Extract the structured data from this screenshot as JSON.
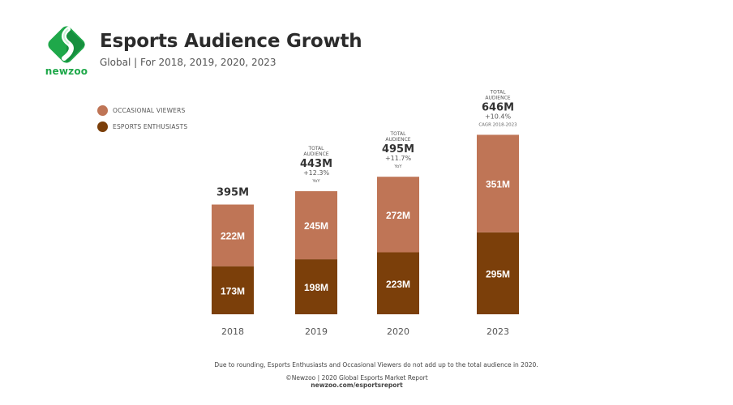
{
  "brand": {
    "logo_text": "newzoo",
    "logo_color": "#1fa84a",
    "logo_dark": "#0e7a35"
  },
  "header": {
    "title": "Esports Audience Growth",
    "subtitle": "Global | For 2018, 2019, 2020, 2023"
  },
  "chart_data": {
    "type": "bar",
    "stacked": true,
    "title": "Esports Audience Growth",
    "subtitle": "Global | For 2018, 2019, 2020, 2023",
    "categories": [
      "2018",
      "2019",
      "2020",
      "2023"
    ],
    "series": [
      {
        "name": "ESPORTS ENTHUSIASTS",
        "color": "#7b3f0a",
        "values": [
          173,
          198,
          223,
          295
        ],
        "labels": [
          "173M",
          "198M",
          "223M",
          "295M"
        ]
      },
      {
        "name": "OCCASIONAL VIEWERS",
        "color": "#bf7556",
        "values": [
          222,
          245,
          272,
          351
        ],
        "labels": [
          "222M",
          "245M",
          "272M",
          "351M"
        ]
      }
    ],
    "totals": [
      {
        "category": "2018",
        "header": "",
        "value": "395M",
        "change": "",
        "change_note": ""
      },
      {
        "category": "2019",
        "header": "TOTAL AUDIENCE",
        "value": "443M",
        "change": "+12.3%",
        "change_note": "YoY"
      },
      {
        "category": "2020",
        "header": "TOTAL AUDIENCE",
        "value": "495M",
        "change": "+11.7%",
        "change_note": "YoY"
      },
      {
        "category": "2023",
        "header": "TOTAL AUDIENCE",
        "value": "646M",
        "change": "+10.4%",
        "change_note": "CAGR 2018-2023"
      }
    ],
    "legend": {
      "position": "top-left",
      "items": [
        {
          "label": "OCCASIONAL VIEWERS",
          "color": "#bf7556"
        },
        {
          "label": "ESPORTS ENTHUSIASTS",
          "color": "#7b3f0a"
        }
      ]
    },
    "xlabel": "",
    "ylabel": "",
    "grid": false,
    "units": "millions"
  },
  "footer": {
    "note": "Due to rounding, Esports Enthusiasts and Occasional Viewers do not add up to the total audience in 2020.",
    "copyright": "©Newzoo | 2020 Global Esports Market Report",
    "url": "newzoo.com/esportsreport"
  }
}
